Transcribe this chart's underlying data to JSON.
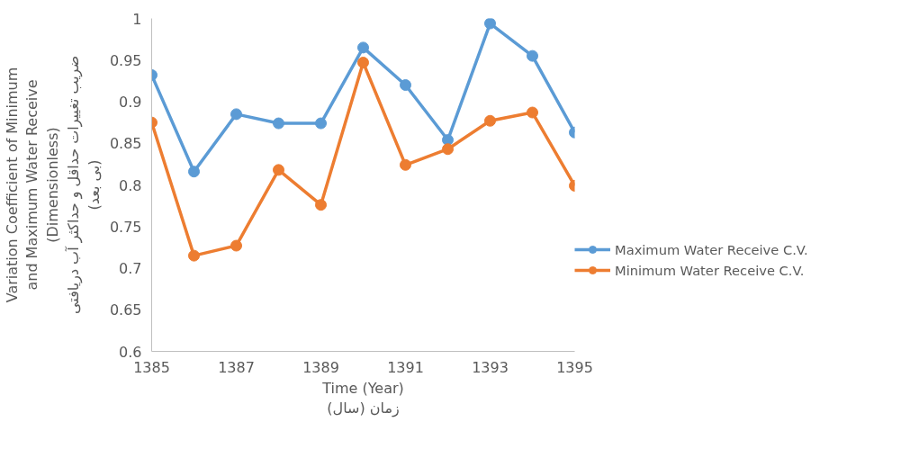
{
  "chart_data": {
    "type": "line",
    "xlabel": "Time (Year)\nزمان (سال)",
    "ylabel": "Variation Coefficient of Minimum\nand Maximum Water Receive\n(Dimensionless)\nضریب تغییرات حداقل و حداکثر آب دریافتی\n(بی بعد)",
    "x": [
      1385,
      1386,
      1387,
      1388,
      1389,
      1390,
      1391,
      1392,
      1393,
      1394,
      1395
    ],
    "series": [
      {
        "name": "Maximum Water Receive C.V.",
        "color": "#5b9bd5",
        "values": [
          0.932,
          0.816,
          0.885,
          0.874,
          0.874,
          0.965,
          0.92,
          0.854,
          0.994,
          0.955,
          0.863
        ]
      },
      {
        "name": "Minimum Water Receive C.V.",
        "color": "#ed7d31",
        "values": [
          0.875,
          0.715,
          0.727,
          0.818,
          0.776,
          0.947,
          0.824,
          0.843,
          0.877,
          0.887,
          0.799
        ]
      }
    ],
    "xlim": [
      1385,
      1395
    ],
    "xticks": [
      1385,
      1387,
      1389,
      1391,
      1393,
      1395
    ],
    "ylim": [
      0.6,
      1
    ],
    "yticks": [
      0.6,
      0.65,
      0.7,
      0.75,
      0.8,
      0.85,
      0.9,
      0.95,
      1
    ],
    "grid": false,
    "legend": "right",
    "marker": "circle",
    "line_style": "solid"
  }
}
